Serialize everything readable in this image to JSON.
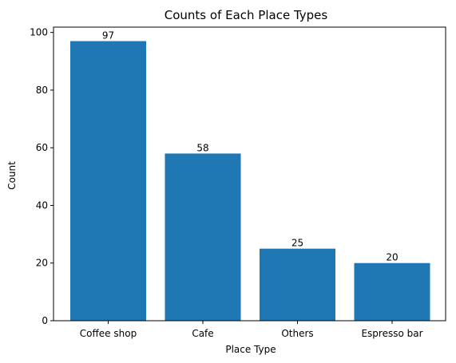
{
  "chart_data": {
    "type": "bar",
    "title": "Counts of Each Place Types",
    "xlabel": "Place Type",
    "ylabel": "Count",
    "categories": [
      "Coffee shop",
      "Cafe",
      "Others",
      "Espresso bar"
    ],
    "values": [
      97,
      58,
      25,
      20
    ],
    "ylim": [
      0,
      101.85
    ],
    "yticks": [
      0,
      20,
      40,
      60,
      80,
      100
    ],
    "grid": false,
    "bar_color": "#1f77b4"
  }
}
